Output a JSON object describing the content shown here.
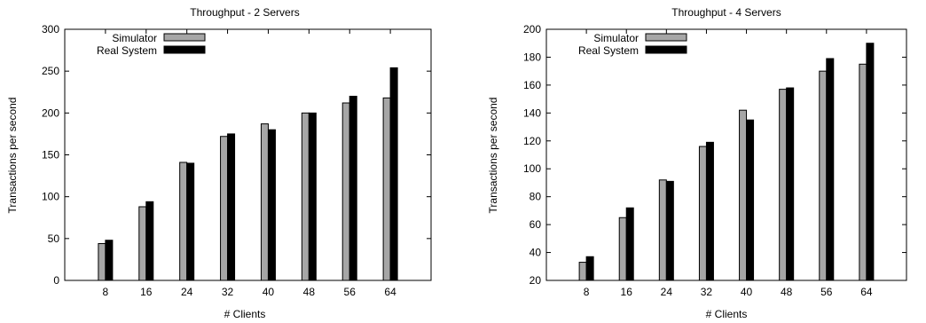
{
  "colors": {
    "simulator": "#a6a6a6",
    "real_system": "#000000",
    "axis": "#000000"
  },
  "chart_data": [
    {
      "type": "bar",
      "title": "Throughput - 2 Servers",
      "xlabel": "# Clients",
      "ylabel": "Transactions per second",
      "categories": [
        "8",
        "16",
        "24",
        "32",
        "40",
        "48",
        "56",
        "64"
      ],
      "ylim": [
        0,
        300
      ],
      "yticks": [
        0,
        50,
        100,
        150,
        200,
        250,
        300
      ],
      "legend_position": "top-left",
      "grid": false,
      "series": [
        {
          "name": "Simulator",
          "values": [
            44,
            88,
            141,
            172,
            187,
            200,
            212,
            218
          ]
        },
        {
          "name": "Real System",
          "values": [
            48,
            94,
            140,
            175,
            180,
            200,
            220,
            254
          ]
        }
      ]
    },
    {
      "type": "bar",
      "title": "Throughput - 4 Servers",
      "xlabel": "# Clients",
      "ylabel": "Transactions per second",
      "categories": [
        "8",
        "16",
        "24",
        "32",
        "40",
        "48",
        "56",
        "64"
      ],
      "ylim": [
        20,
        200
      ],
      "yticks": [
        20,
        40,
        60,
        80,
        100,
        120,
        140,
        160,
        180,
        200
      ],
      "legend_position": "top-left",
      "grid": false,
      "series": [
        {
          "name": "Simulator",
          "values": [
            33,
            65,
            92,
            116,
            142,
            157,
            170,
            175
          ]
        },
        {
          "name": "Real System",
          "values": [
            37,
            72,
            91,
            119,
            135,
            158,
            179,
            190
          ]
        }
      ]
    }
  ]
}
